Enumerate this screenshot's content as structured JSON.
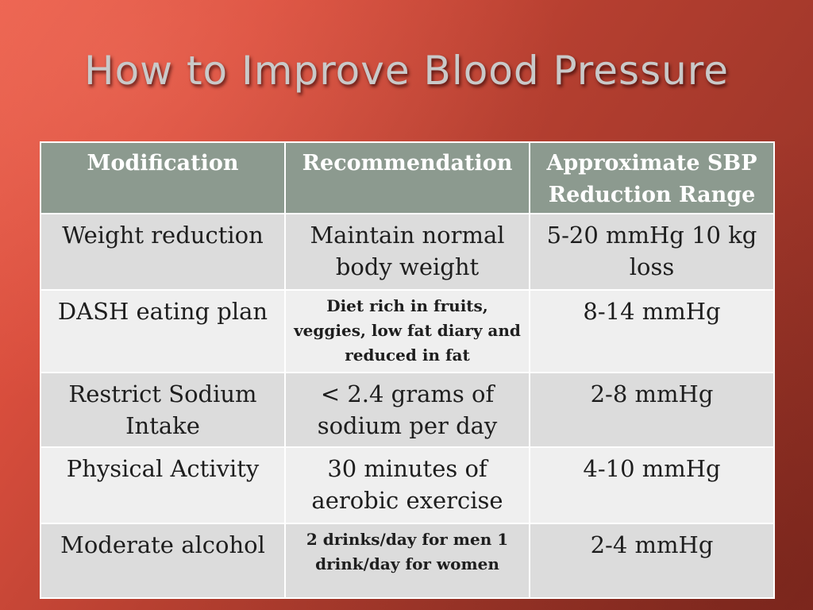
{
  "slide": {
    "title": "How to Improve Blood Pressure"
  },
  "table": {
    "headers": {
      "modification": "Modification",
      "recommendation": "Recommendation",
      "reduction": "Approximate SBP Reduction Range"
    },
    "rows": [
      {
        "modification": "Weight reduction",
        "recommendation": "Maintain normal body weight",
        "reduction": "5-20 mmHg 10 kg loss"
      },
      {
        "modification": "DASH eating plan",
        "recommendation": "Diet rich in fruits, veggies, low fat diary and reduced in fat",
        "reduction": "8-14 mmHg"
      },
      {
        "modification": "Restrict Sodium Intake",
        "recommendation": "< 2.4 grams of sodium per day",
        "reduction": "2-8 mmHg"
      },
      {
        "modification": "Physical Activity",
        "recommendation": "30 minutes of aerobic exercise",
        "reduction": "4-10 mmHg"
      },
      {
        "modification": "Moderate alcohol",
        "recommendation": "2 drinks/day for men 1 drink/day for women",
        "reduction": "2-4 mmHg"
      }
    ]
  },
  "colors": {
    "background_start": "#ea5f4c",
    "background_end": "#8f2f24",
    "header_fill": "#8c9a8f",
    "row_fill_dark": "#dcdcdc",
    "row_fill_light": "#efefef",
    "title_text": "#c9c9c9"
  }
}
